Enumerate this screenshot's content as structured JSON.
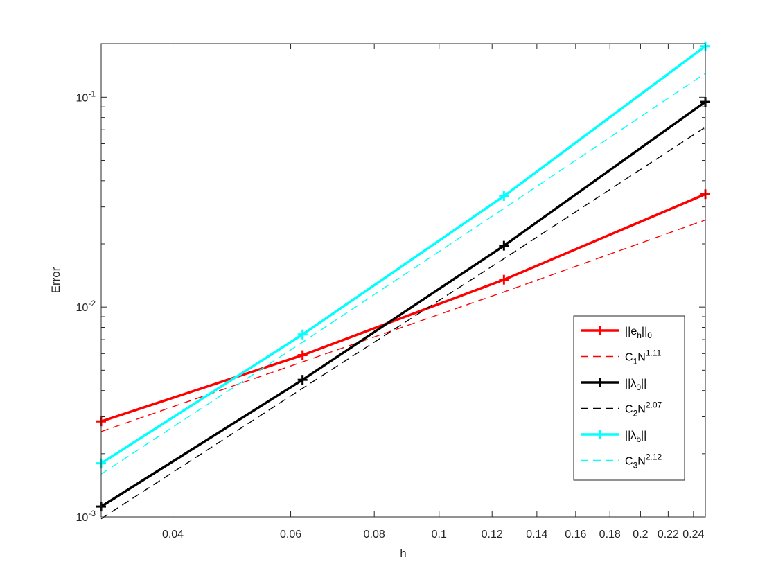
{
  "chart_data": {
    "type": "line",
    "xscale": "log",
    "yscale": "log",
    "xlabel": "h",
    "ylabel": "Error",
    "xlim": [
      0.03125,
      0.25
    ],
    "ylim": [
      0.001,
      0.18
    ],
    "grid": false,
    "legend_position": "lower-right",
    "x_ticks": [
      0.04,
      0.06,
      0.08,
      0.1,
      0.12,
      0.14,
      0.16,
      0.18,
      0.2,
      0.22,
      0.24
    ],
    "x_tick_labels": [
      "0.04",
      "0.06",
      "0.08",
      "0.1",
      "0.12",
      "0.14",
      "0.16",
      "0.18",
      "0.2",
      "0.22",
      "0.24"
    ],
    "y_ticks": [
      0.001,
      0.01,
      0.1
    ],
    "y_tick_labels": [
      {
        "base": "10",
        "exp": "-3"
      },
      {
        "base": "10",
        "exp": "-2"
      },
      {
        "base": "10",
        "exp": "-1"
      }
    ],
    "x": [
      0.03125,
      0.0625,
      0.125,
      0.25
    ],
    "series": [
      {
        "name": "||e_h||_0",
        "label_main": "||e",
        "label_sub": "h",
        "label_after": "||",
        "label_sub2": "0",
        "color": "#ff0000",
        "style": "solid-marker",
        "values": [
          0.00285,
          0.0059,
          0.0135,
          0.0345
        ]
      },
      {
        "name": "C_1N^1.11",
        "label_main": "C",
        "label_sub": "1",
        "label_after": "N",
        "label_sup": "1.11",
        "color": "#ff0000",
        "style": "dashed",
        "values": [
          0.00255,
          0.00548,
          0.0118,
          0.026
        ]
      },
      {
        "name": "||λ_0||",
        "label_main": "||λ",
        "label_sub": "0",
        "label_after": "||",
        "color": "#000000",
        "style": "solid-marker",
        "values": [
          0.00112,
          0.0045,
          0.0196,
          0.095
        ]
      },
      {
        "name": "C_2N^2.07",
        "label_main": "C",
        "label_sub": "2",
        "label_after": "N",
        "label_sup": "2.07",
        "color": "#000000",
        "style": "dashed",
        "values": [
          0.00098,
          0.0041,
          0.017,
          0.072
        ]
      },
      {
        "name": "||λ_b||",
        "label_main": "||λ",
        "label_sub": "b",
        "label_after": "||",
        "color": "#00ffff",
        "style": "solid-marker",
        "values": [
          0.0018,
          0.0074,
          0.0338,
          0.175
        ]
      },
      {
        "name": "C_3N^2.12",
        "label_main": "C",
        "label_sub": "3",
        "label_after": "N",
        "label_sup": "2.12",
        "color": "#00ffff",
        "style": "dashed",
        "values": [
          0.0016,
          0.0068,
          0.0295,
          0.13
        ]
      }
    ]
  }
}
